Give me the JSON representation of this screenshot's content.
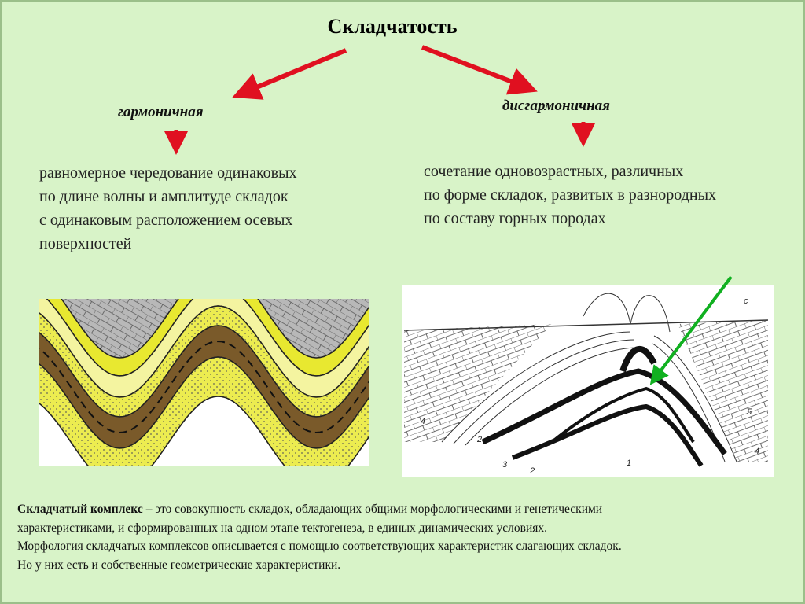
{
  "title": "Складчатость",
  "harmonic": {
    "heading": "гармоничная",
    "lines": [
      "равномерное чередование одинаковых",
      "по длине волны и амплитуде складок",
      "с одинаковым расположением осевых",
      "поверхностей"
    ]
  },
  "disharmonic": {
    "heading": "дисгармоничная",
    "lines": [
      "сочетание одновозрастных, различных",
      "по форме складок, развитых в разнородных",
      "по составу горных породах"
    ]
  },
  "figure_labels": [
    "с",
    "4",
    "2",
    "3",
    "2",
    "1",
    "5",
    "4"
  ],
  "definition": {
    "term": "Складчатый комплекс",
    "lines": [
      "– это совокупность складок, обладающих общими морфологическими и генетическими",
      "характеристиками, и сформированных на одном этапе тектогенеза, в единых динамических условиях.",
      "Морфология складчатых комплексов описывается с помощью соответствующих характеристик слагающих складок.",
      "Но у них есть и собственные геометрические характеристики."
    ]
  }
}
